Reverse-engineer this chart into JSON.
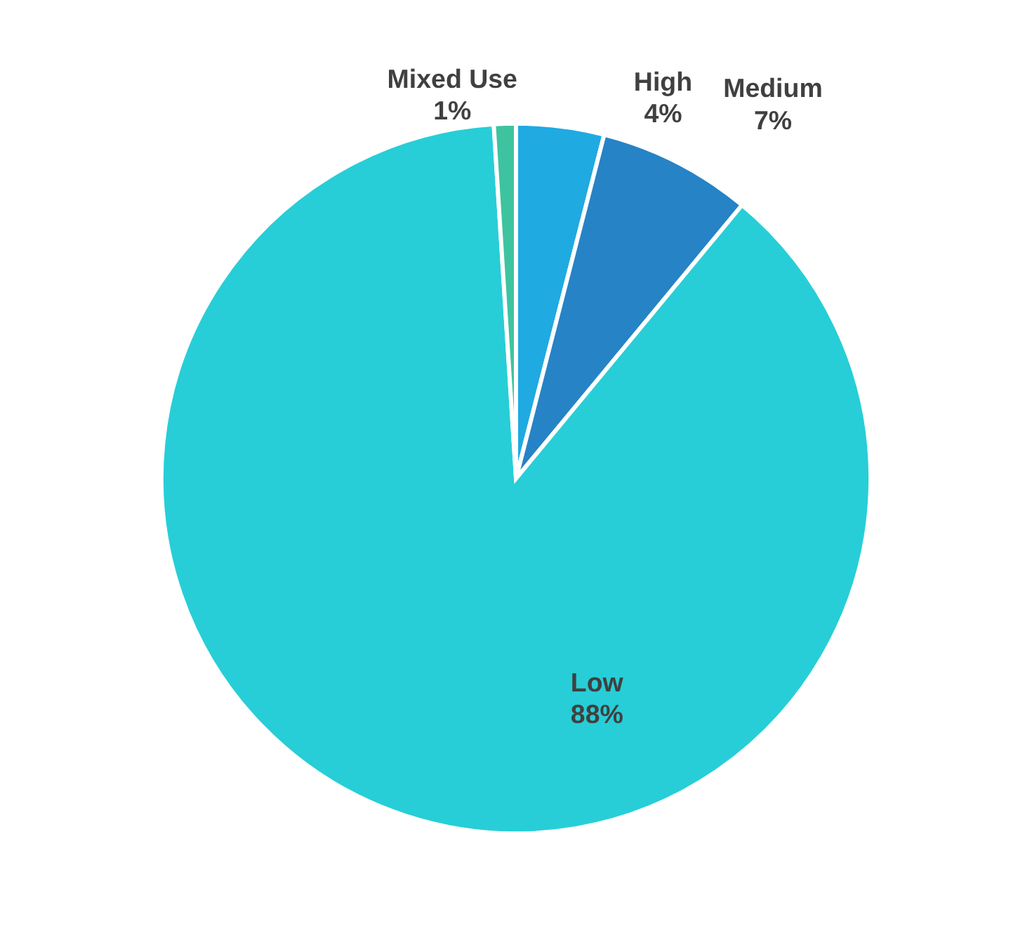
{
  "chart_data": {
    "type": "pie",
    "categories": [
      "High",
      "Medium",
      "Low",
      "Mixed Use"
    ],
    "values": [
      4,
      7,
      88,
      1
    ],
    "colors": [
      "#1faae2",
      "#2683c6",
      "#27ced7",
      "#3ec3a0"
    ],
    "value_labels": [
      "4%",
      "7%",
      "88%",
      "1%"
    ]
  }
}
